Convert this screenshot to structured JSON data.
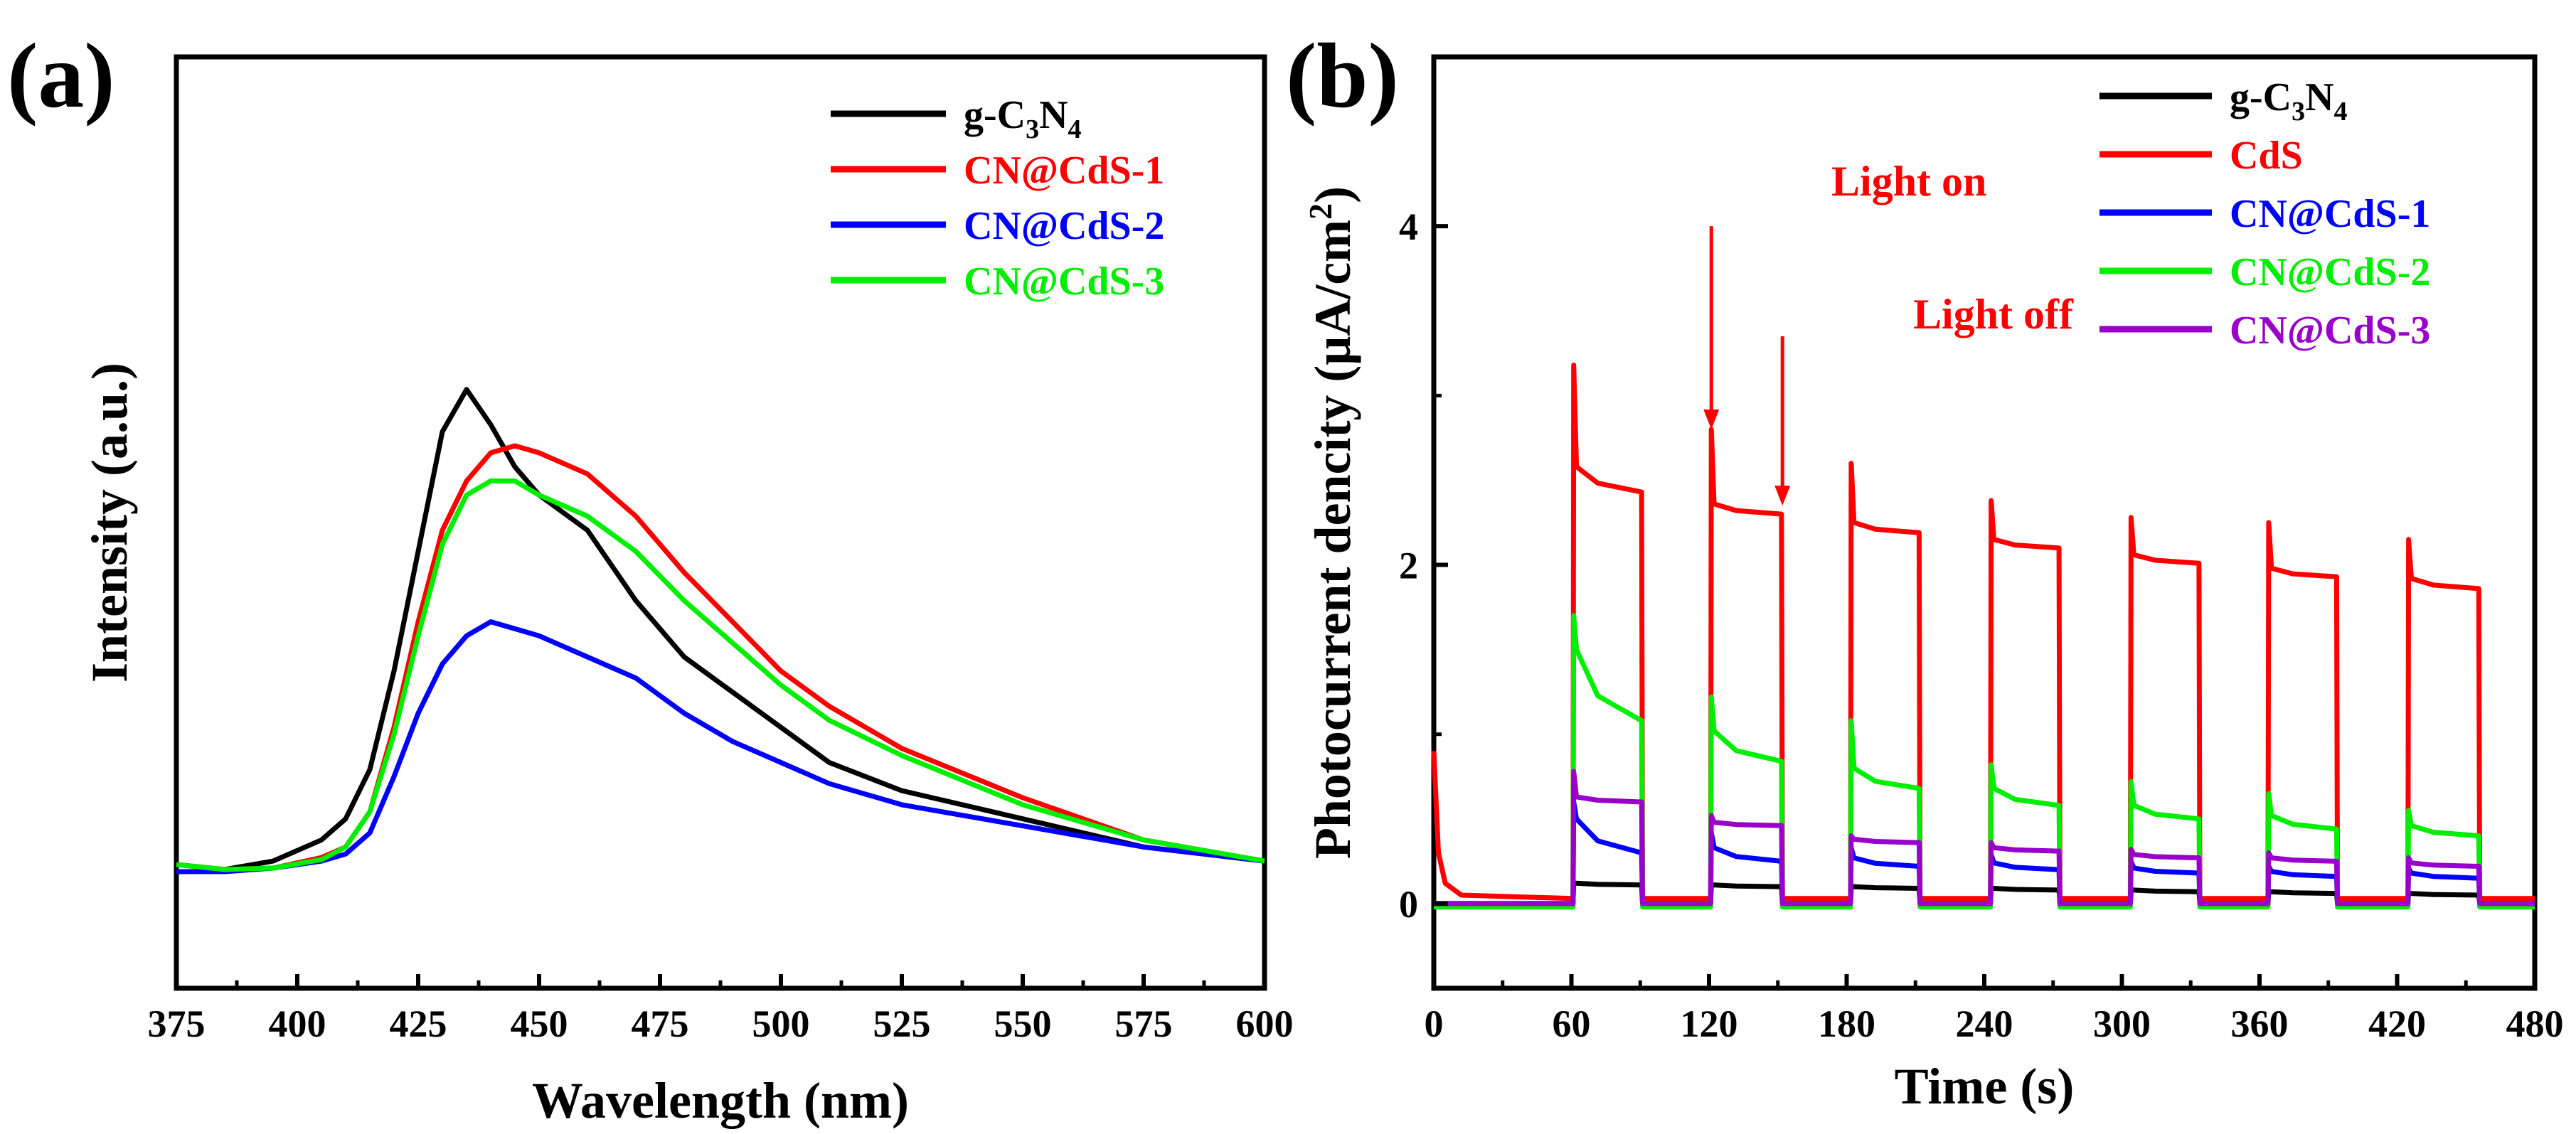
{
  "chart_data": [
    {
      "type": "line",
      "panel_label": "(a)",
      "xlabel": "Wavelength (nm)",
      "ylabel": "Intensity (a.u.)",
      "xlim": [
        375,
        600
      ],
      "ylim": [
        0,
        1
      ],
      "y_ticks_shown": false,
      "x_ticks": [
        "375",
        "400",
        "425",
        "450",
        "475",
        "500",
        "525",
        "550",
        "575",
        "600"
      ],
      "x_tick_values": [
        375,
        400,
        425,
        450,
        475,
        500,
        525,
        550,
        575,
        600
      ],
      "legend_position": "top-right",
      "series": [
        {
          "name": "g-C3N4",
          "legend_main": "g-C",
          "legend_sub1": "3",
          "legend_mid": "N",
          "legend_sub2": "4",
          "color": "#000000",
          "x": [
            375,
            385,
            395,
            405,
            410,
            415,
            420,
            425,
            430,
            435,
            440,
            445,
            450,
            460,
            470,
            480,
            490,
            500,
            510,
            525,
            550,
            575,
            600
          ],
          "y": [
            0.105,
            0.098,
            0.11,
            0.14,
            0.17,
            0.24,
            0.38,
            0.55,
            0.72,
            0.78,
            0.73,
            0.67,
            0.63,
            0.58,
            0.48,
            0.4,
            0.35,
            0.3,
            0.25,
            0.21,
            0.17,
            0.13,
            0.11
          ]
        },
        {
          "name": "CN@CdS-1",
          "color": "#ff0000",
          "x": [
            375,
            385,
            395,
            405,
            410,
            415,
            420,
            425,
            430,
            435,
            440,
            445,
            450,
            460,
            470,
            480,
            490,
            500,
            510,
            525,
            550,
            575,
            600
          ],
          "y": [
            0.105,
            0.098,
            0.1,
            0.115,
            0.13,
            0.18,
            0.3,
            0.45,
            0.58,
            0.65,
            0.69,
            0.7,
            0.69,
            0.66,
            0.6,
            0.52,
            0.45,
            0.38,
            0.33,
            0.27,
            0.2,
            0.14,
            0.11
          ]
        },
        {
          "name": "CN@CdS-2",
          "color": "#0000ff",
          "x": [
            375,
            385,
            395,
            405,
            410,
            415,
            420,
            425,
            430,
            435,
            440,
            445,
            450,
            460,
            470,
            480,
            490,
            500,
            510,
            525,
            550,
            575,
            600
          ],
          "y": [
            0.095,
            0.095,
            0.1,
            0.11,
            0.12,
            0.15,
            0.23,
            0.32,
            0.39,
            0.43,
            0.45,
            0.44,
            0.43,
            0.4,
            0.37,
            0.32,
            0.28,
            0.25,
            0.22,
            0.19,
            0.16,
            0.13,
            0.11
          ]
        },
        {
          "name": "CN@CdS-3",
          "color": "#00ee00",
          "x": [
            375,
            385,
            395,
            405,
            410,
            415,
            420,
            425,
            430,
            435,
            440,
            445,
            450,
            460,
            470,
            480,
            490,
            500,
            510,
            525,
            550,
            575,
            600
          ],
          "y": [
            0.105,
            0.098,
            0.1,
            0.112,
            0.13,
            0.18,
            0.29,
            0.43,
            0.56,
            0.63,
            0.65,
            0.65,
            0.63,
            0.6,
            0.55,
            0.48,
            0.42,
            0.36,
            0.31,
            0.26,
            0.19,
            0.14,
            0.11
          ]
        }
      ]
    },
    {
      "type": "line",
      "panel_label": "(b)",
      "xlabel": "Time (s)",
      "ylabel_main": "Photocurrent dencity (μA/cm",
      "ylabel_sup": "2",
      "ylabel_close": ")",
      "xlim": [
        0,
        480
      ],
      "ylim": [
        -0.5,
        5
      ],
      "x_ticks": [
        "0",
        "60",
        "120",
        "180",
        "240",
        "300",
        "360",
        "420",
        "480"
      ],
      "x_tick_values": [
        0,
        60,
        120,
        180,
        240,
        300,
        360,
        420,
        480
      ],
      "y_ticks": [
        "0",
        "2",
        "4"
      ],
      "y_tick_values": [
        0,
        2,
        4
      ],
      "legend_position": "top-right",
      "annotations": [
        {
          "text": "Light on",
          "arrow_x": 121,
          "arrow_y_from": 4.0,
          "arrow_y_to": 2.8,
          "color": "#ff0000"
        },
        {
          "text": "Light off",
          "arrow_x": 152,
          "arrow_y_from": 3.35,
          "arrow_y_to": 2.35,
          "color": "#ff0000"
        }
      ],
      "on_periods": [
        [
          61,
          91
        ],
        [
          121,
          152
        ],
        [
          182,
          212
        ],
        [
          243,
          273
        ],
        [
          304,
          334
        ],
        [
          364,
          394
        ],
        [
          425,
          456
        ]
      ],
      "baseline_decay": {
        "start_value": 0.9,
        "settle_time": 12
      },
      "series": [
        {
          "name": "g-C3N4",
          "legend_main": "g-C",
          "legend_sub1": "3",
          "legend_mid": "N",
          "legend_sub2": "4",
          "color": "#000000",
          "off": 0.0,
          "spike": [
            0.12,
            0.11,
            0.1,
            0.09,
            0.08,
            0.07,
            0.06
          ],
          "plateau_start": [
            0.12,
            0.11,
            0.1,
            0.09,
            0.08,
            0.07,
            0.06
          ],
          "plateau_end": [
            0.11,
            0.1,
            0.09,
            0.08,
            0.07,
            0.06,
            0.05
          ]
        },
        {
          "name": "CdS",
          "color": "#ff0000",
          "off": 0.03,
          "spike": [
            3.18,
            2.8,
            2.6,
            2.38,
            2.28,
            2.25,
            2.15
          ],
          "plateau_start": [
            2.58,
            2.36,
            2.25,
            2.15,
            2.06,
            1.98,
            1.92
          ],
          "plateau_end": [
            2.43,
            2.3,
            2.19,
            2.1,
            2.01,
            1.93,
            1.86
          ]
        },
        {
          "name": "CN@CdS-1",
          "color": "#0000ff",
          "off": 0.0,
          "spike": [
            0.6,
            0.42,
            0.33,
            0.29,
            0.25,
            0.22,
            0.21
          ],
          "plateau_start": [
            0.5,
            0.33,
            0.27,
            0.24,
            0.21,
            0.19,
            0.18
          ],
          "plateau_end": [
            0.3,
            0.25,
            0.22,
            0.2,
            0.18,
            0.16,
            0.15
          ]
        },
        {
          "name": "CN@CdS-2",
          "color": "#00ee00",
          "off": -0.02,
          "spike": [
            1.7,
            1.22,
            1.08,
            0.82,
            0.72,
            0.65,
            0.55
          ],
          "plateau_start": [
            1.5,
            1.02,
            0.8,
            0.68,
            0.58,
            0.52,
            0.46
          ],
          "plateau_end": [
            1.08,
            0.84,
            0.68,
            0.58,
            0.5,
            0.44,
            0.4
          ]
        },
        {
          "name": "CN@CdS-3",
          "color": "#9900cc",
          "off": 0.0,
          "spike": [
            0.78,
            0.52,
            0.4,
            0.36,
            0.32,
            0.3,
            0.27
          ],
          "plateau_start": [
            0.63,
            0.48,
            0.38,
            0.33,
            0.29,
            0.27,
            0.24
          ],
          "plateau_end": [
            0.6,
            0.46,
            0.36,
            0.31,
            0.27,
            0.25,
            0.22
          ]
        }
      ]
    }
  ]
}
